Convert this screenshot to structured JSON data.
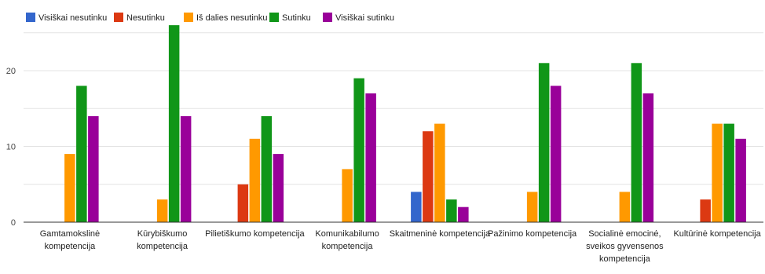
{
  "chart_data": {
    "type": "bar",
    "categories": [
      [
        "Gamtamokslinė",
        "kompetencija"
      ],
      [
        "Kūrybiškumo",
        "kompetencija"
      ],
      [
        "Pilietiškumo kompetencija"
      ],
      [
        "Komunikabilumo",
        "kompetencija"
      ],
      [
        "Skaitmeninė kompetencija"
      ],
      [
        "Pažinimo kompetencija"
      ],
      [
        "Socialinė emocinė,",
        "sveikos gyvensenos",
        "kompetencija"
      ],
      [
        "Kultūrinė kompetencija"
      ]
    ],
    "series": [
      {
        "name": "Visiškai nesutinku",
        "color": "#3366cc",
        "values": [
          0,
          0,
          0,
          0,
          4,
          0,
          0,
          0
        ]
      },
      {
        "name": "Nesutinku",
        "color": "#dc3912",
        "values": [
          0,
          0,
          5,
          0,
          12,
          0,
          0,
          3
        ]
      },
      {
        "name": "Iš dalies nesutinku",
        "color": "#ff9900",
        "values": [
          9,
          3,
          11,
          7,
          13,
          4,
          4,
          13
        ]
      },
      {
        "name": "Sutinku",
        "color": "#109618",
        "values": [
          18,
          26,
          14,
          19,
          3,
          21,
          21,
          13
        ]
      },
      {
        "name": "Visiškai sutinku",
        "color": "#990099",
        "values": [
          14,
          14,
          9,
          17,
          2,
          18,
          17,
          11
        ]
      }
    ],
    "yticks": [
      0,
      10,
      20
    ],
    "ylim": [
      0,
      26
    ],
    "grid": true,
    "legend_position": "top-left"
  }
}
